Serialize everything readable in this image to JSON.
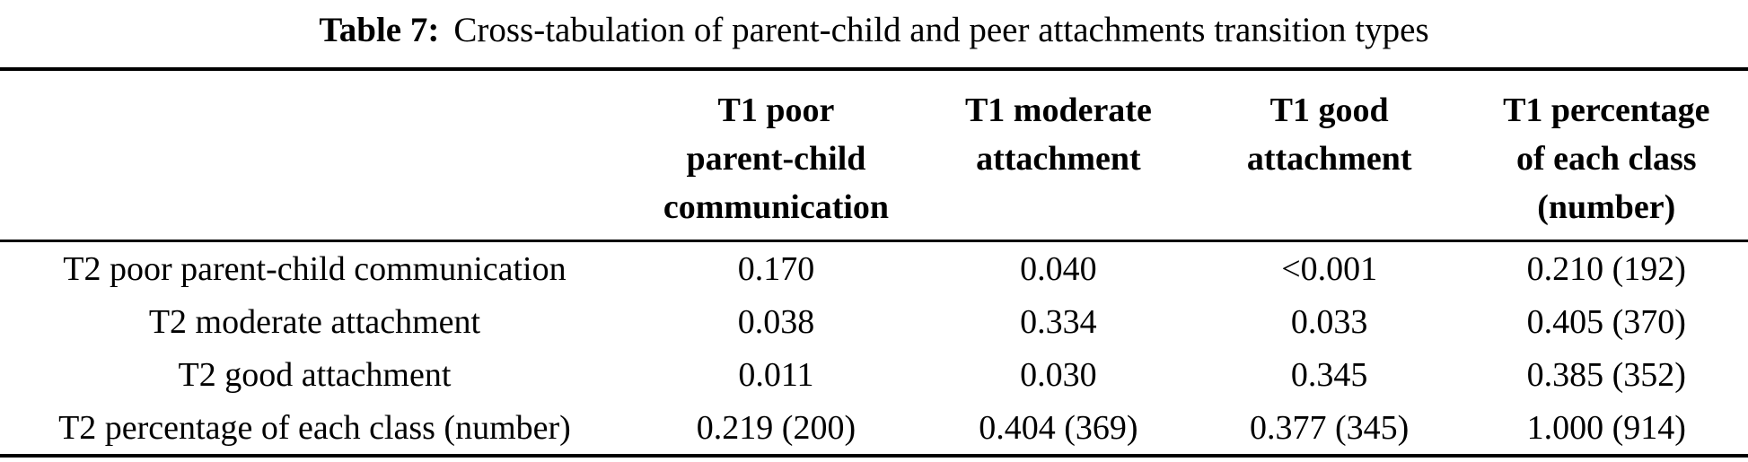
{
  "caption": {
    "label": "Table 7:",
    "text": "Cross-tabulation of parent-child and peer attachments transition types"
  },
  "table": {
    "headers": [
      {
        "name": "T1 poor parent-child communication",
        "lines": [
          "T1 poor",
          "parent-child",
          "communication"
        ]
      },
      {
        "name": "T1 moderate attachment",
        "lines": [
          "T1 moderate",
          "attachment"
        ]
      },
      {
        "name": "T1 good attachment",
        "lines": [
          "T1 good",
          "attachment"
        ]
      },
      {
        "name": "T1 percentage of each class (number)",
        "lines": [
          "T1 percentage",
          "of each class",
          "(number)"
        ]
      }
    ],
    "rows": [
      {
        "label": "T2 poor parent-child communication",
        "values": [
          "0.170",
          "0.040",
          "<0.001",
          "0.210 (192)"
        ]
      },
      {
        "label": "T2 moderate attachment",
        "values": [
          "0.038",
          "0.334",
          "0.033",
          "0.405 (370)"
        ]
      },
      {
        "label": "T2 good attachment",
        "values": [
          "0.011",
          "0.030",
          "0.345",
          "0.385 (352)"
        ]
      },
      {
        "label": "T2 percentage of each class (number)",
        "values": [
          "0.219 (200)",
          "0.404 (369)",
          "0.377 (345)",
          "1.000 (914)"
        ]
      }
    ],
    "colors": {
      "text": "#000000",
      "background": "#ffffff",
      "rule": "#000000"
    }
  }
}
